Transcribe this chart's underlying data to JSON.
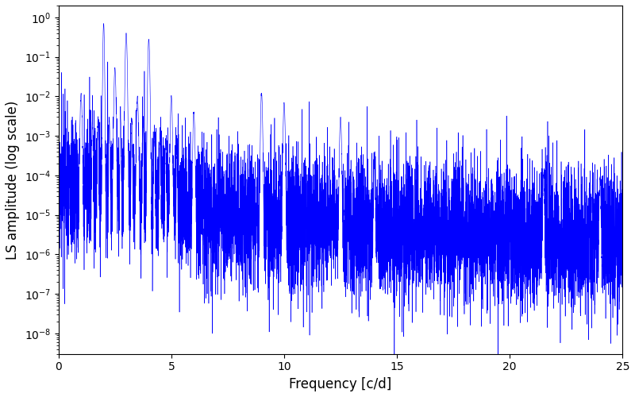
{
  "title": "",
  "xlabel": "Frequency [c/d]",
  "ylabel": "LS amplitude (log scale)",
  "xlim": [
    0,
    25
  ],
  "ylim_log": [
    3e-09,
    2.0
  ],
  "line_color": "#0000FF",
  "background_color": "#ffffff",
  "figsize": [
    8.0,
    5.0
  ],
  "dpi": 100,
  "seed": 17,
  "n_points": 8000,
  "freq_max": 25.0,
  "base_level": 5e-05,
  "alpha": 2.0
}
